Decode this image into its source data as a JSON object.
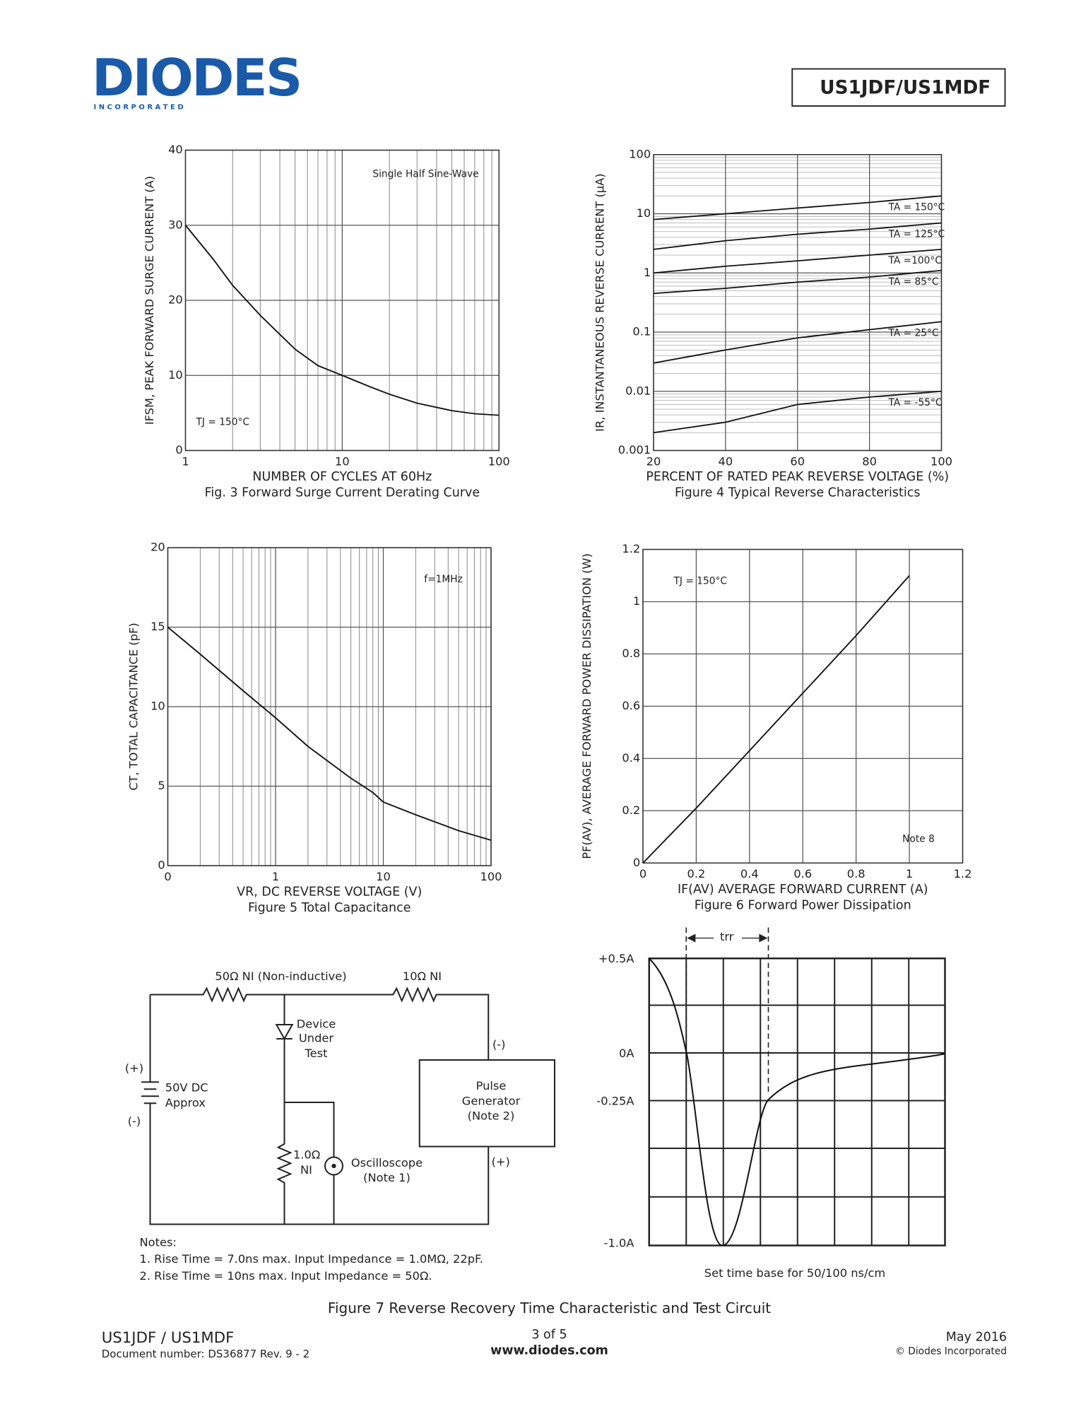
{
  "header": {
    "logo": "DIODES",
    "logo_sub": "I N C O R P O R A T E D",
    "part": "US1JDF/US1MDF"
  },
  "chart_data": [
    {
      "type": "line",
      "title": "Fig. 3  Forward Surge Current Derating Curve",
      "x_label": "NUMBER OF CYCLES AT 60Hz",
      "y_label": "IFSM, PEAK FORWARD SURGE CURRENT (A)",
      "annotations": [
        "Single Half Sine-Wave",
        "TJ = 150°C"
      ],
      "xscale": "log",
      "xlim": [
        1,
        100
      ],
      "xticks": [
        1,
        10,
        100
      ],
      "ylim": [
        0,
        40
      ],
      "yticks": [
        0,
        10,
        20,
        30,
        40
      ],
      "grid": true,
      "color": "#111",
      "x": [
        1,
        1.5,
        2,
        3,
        5,
        7,
        10,
        15,
        20,
        30,
        50,
        70,
        100
      ],
      "values": [
        30,
        25.5,
        22,
        18,
        13.5,
        11.3,
        10,
        8.5,
        7.5,
        6.3,
        5.3,
        4.9,
        4.7
      ]
    },
    {
      "type": "line",
      "title": "Figure 4 Typical Reverse Characteristics",
      "x_label": "PERCENT OF RATED PEAK REVERSE VOLTAGE (%)",
      "y_label": "IR, INSTANTANEOUS REVERSE CURRENT (µA)",
      "xlim": [
        20,
        100
      ],
      "xticks": [
        20,
        40,
        60,
        80,
        100
      ],
      "yscale": "log",
      "ylim": [
        0.001,
        100
      ],
      "yticks": [
        0.001,
        0.01,
        0.1,
        1,
        10,
        100
      ],
      "grid": true,
      "x": [
        20,
        40,
        60,
        80,
        100
      ],
      "series": [
        {
          "name": "TA = 150°C",
          "color": "#111",
          "values": [
            8,
            10,
            12.5,
            15.5,
            20
          ]
        },
        {
          "name": "TA = 125°C",
          "color": "#111",
          "values": [
            2.5,
            3.5,
            4.5,
            5.5,
            7
          ]
        },
        {
          "name": "TA =100°C",
          "color": "#111",
          "values": [
            1,
            1.3,
            1.6,
            2,
            2.5
          ]
        },
        {
          "name": "TA = 85°C",
          "color": "#111",
          "values": [
            0.45,
            0.55,
            0.7,
            0.85,
            1.1
          ]
        },
        {
          "name": "TA = 25°C",
          "color": "#111",
          "values": [
            0.03,
            0.05,
            0.08,
            0.11,
            0.15
          ]
        },
        {
          "name": "TA = -55°C",
          "color": "#111",
          "values": [
            0.002,
            0.003,
            0.006,
            0.008,
            0.01
          ]
        }
      ]
    },
    {
      "type": "line",
      "title": "Figure 5 Total Capacitance",
      "x_label": "VR, DC REVERSE VOLTAGE (V)",
      "y_label": "CT, TOTAL CAPACITANCE (pF)",
      "annotations": [
        "f=1MHz"
      ],
      "xscale": "log",
      "xlim": [
        0.1,
        100
      ],
      "xticks": [
        {
          "value": 0.1,
          "label": "0"
        },
        1,
        10,
        100
      ],
      "ylim": [
        0,
        20
      ],
      "yticks": [
        0,
        5,
        10,
        15,
        20
      ],
      "grid": true,
      "color": "#111",
      "x": [
        0.1,
        0.2,
        0.5,
        1,
        2,
        5,
        8,
        10,
        20,
        50,
        100
      ],
      "values": [
        15,
        13.3,
        11,
        9.3,
        7.5,
        5.5,
        4.6,
        4,
        3.2,
        2.2,
        1.6
      ]
    },
    {
      "type": "line",
      "title": "Figure 6 Forward Power Dissipation",
      "x_label": "IF(AV) AVERAGE FORWARD CURRENT (A)",
      "y_label": "PF(AV), AVERAGE FORWARD POWER DISSIPATION (W)",
      "annotations": [
        "TJ = 150°C",
        "Note 8"
      ],
      "xlim": [
        0,
        1.2
      ],
      "xticks": [
        0,
        0.2,
        0.4,
        0.6,
        0.8,
        1,
        1.2
      ],
      "ylim": [
        0,
        1.2
      ],
      "yticks": [
        0,
        0.2,
        0.4,
        0.6,
        0.8,
        1,
        1.2
      ],
      "grid": true,
      "color": "#111",
      "x": [
        0,
        0.2,
        0.4,
        0.6,
        0.8,
        1
      ],
      "values": [
        0,
        0.21,
        0.43,
        0.65,
        0.87,
        1.1
      ]
    }
  ],
  "figure_7": {
    "caption": "Figure 7 Reverse Recovery Time Characteristic and Test Circuit",
    "circuit": {
      "labels": [
        "50Ω NI (Non-inductive)",
        "10Ω NI",
        "Device",
        "Under",
        "Test",
        "(+)",
        "50V DC",
        "Approx",
        "(-)",
        "(-)",
        "Pulse",
        "Generator",
        "(Note 2)",
        "1.0Ω",
        "NI",
        "Oscilloscope",
        "(Note 1)",
        "(+)"
      ]
    },
    "notes": [
      "Notes:",
      "1. Rise Time = 7.0ns max. Input Impedance = 1.0MΩ, 22pF.",
      "2. Rise Time = 10ns max. Input Impedance = 50Ω."
    ],
    "waveform": {
      "axis_labels": [
        "+0.5A",
        "0A",
        "-0.25A",
        "-1.0A"
      ],
      "trr": "trr",
      "note": "Set time base for 50/100 ns/cm"
    }
  },
  "footer": {
    "part": "US1JDF / US1MDF",
    "doc": "Document number: DS36877 Rev. 9 - 2",
    "page": "3 of 5",
    "url": "www.diodes.com",
    "date": "May 2016",
    "copyright": "© Diodes Incorporated"
  }
}
